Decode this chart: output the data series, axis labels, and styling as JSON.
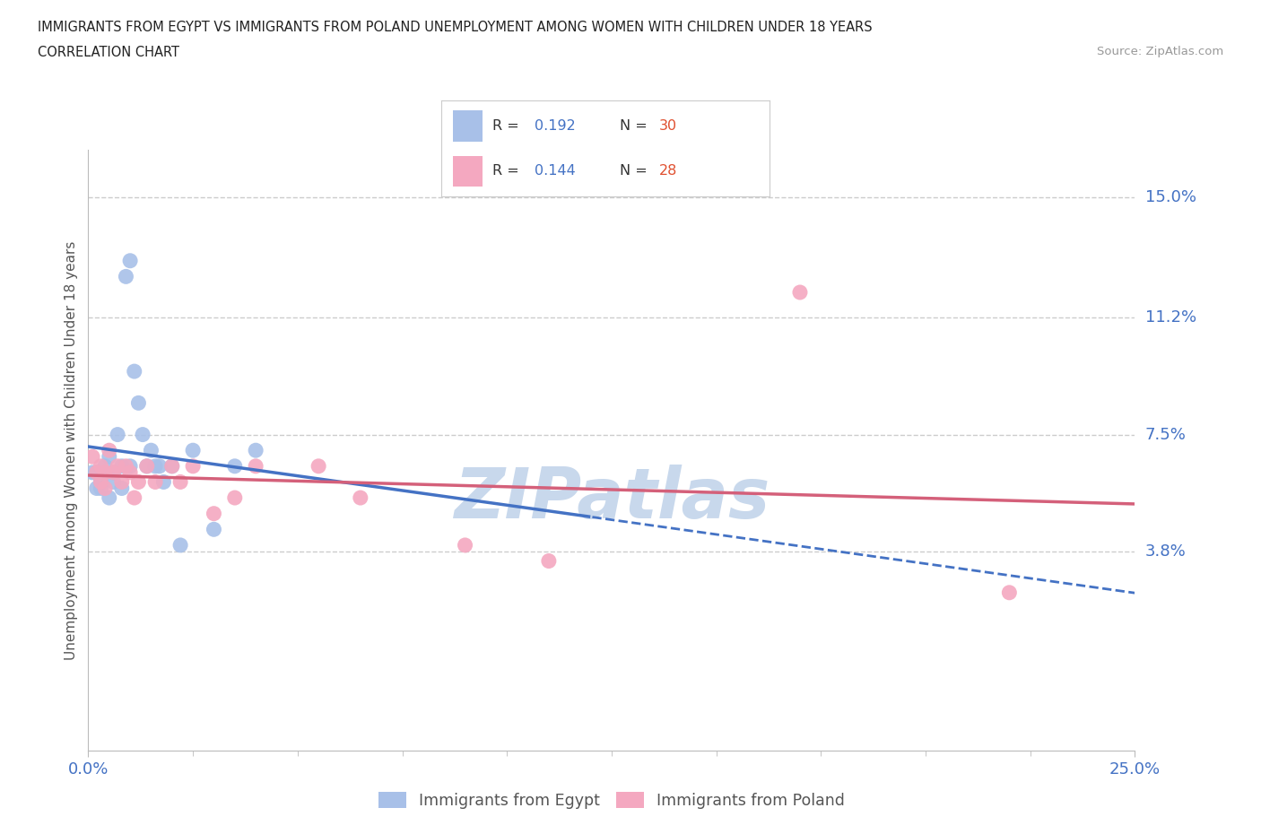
{
  "title_line1": "IMMIGRANTS FROM EGYPT VS IMMIGRANTS FROM POLAND UNEMPLOYMENT AMONG WOMEN WITH CHILDREN UNDER 18 YEARS",
  "title_line2": "CORRELATION CHART",
  "source": "Source: ZipAtlas.com",
  "ylabel": "Unemployment Among Women with Children Under 18 years",
  "xlim": [
    0.0,
    0.25
  ],
  "ylim": [
    -0.025,
    0.165
  ],
  "yticks": [
    0.038,
    0.075,
    0.112,
    0.15
  ],
  "ytick_labels": [
    "3.8%",
    "7.5%",
    "11.2%",
    "15.0%"
  ],
  "egypt_color": "#A8C0E8",
  "poland_color": "#F4A8C0",
  "egypt_line_color": "#4472C4",
  "poland_line_color": "#D4607A",
  "r_egypt": 0.192,
  "n_egypt": 30,
  "r_poland": 0.144,
  "n_poland": 28,
  "egypt_scatter_x": [
    0.001,
    0.002,
    0.002,
    0.003,
    0.003,
    0.004,
    0.005,
    0.005,
    0.006,
    0.006,
    0.007,
    0.008,
    0.008,
    0.009,
    0.01,
    0.01,
    0.011,
    0.012,
    0.013,
    0.014,
    0.015,
    0.016,
    0.017,
    0.018,
    0.02,
    0.022,
    0.025,
    0.03,
    0.035,
    0.04
  ],
  "egypt_scatter_y": [
    0.063,
    0.058,
    0.063,
    0.06,
    0.058,
    0.065,
    0.068,
    0.055,
    0.063,
    0.06,
    0.075,
    0.065,
    0.058,
    0.125,
    0.13,
    0.065,
    0.095,
    0.085,
    0.075,
    0.065,
    0.07,
    0.065,
    0.065,
    0.06,
    0.065,
    0.04,
    0.07,
    0.045,
    0.065,
    0.07
  ],
  "poland_scatter_x": [
    0.001,
    0.002,
    0.003,
    0.003,
    0.004,
    0.004,
    0.005,
    0.006,
    0.007,
    0.008,
    0.009,
    0.01,
    0.011,
    0.012,
    0.014,
    0.016,
    0.02,
    0.022,
    0.025,
    0.03,
    0.035,
    0.04,
    0.055,
    0.065,
    0.09,
    0.11,
    0.17,
    0.22
  ],
  "poland_scatter_y": [
    0.068,
    0.063,
    0.065,
    0.06,
    0.063,
    0.058,
    0.07,
    0.063,
    0.065,
    0.06,
    0.065,
    0.063,
    0.055,
    0.06,
    0.065,
    0.06,
    0.065,
    0.06,
    0.065,
    0.05,
    0.055,
    0.065,
    0.065,
    0.055,
    0.04,
    0.035,
    0.12,
    0.025
  ],
  "background_color": "#FFFFFF",
  "grid_color": "#CCCCCC",
  "watermark": "ZIPatlas",
  "watermark_color": "#C8D8EC"
}
